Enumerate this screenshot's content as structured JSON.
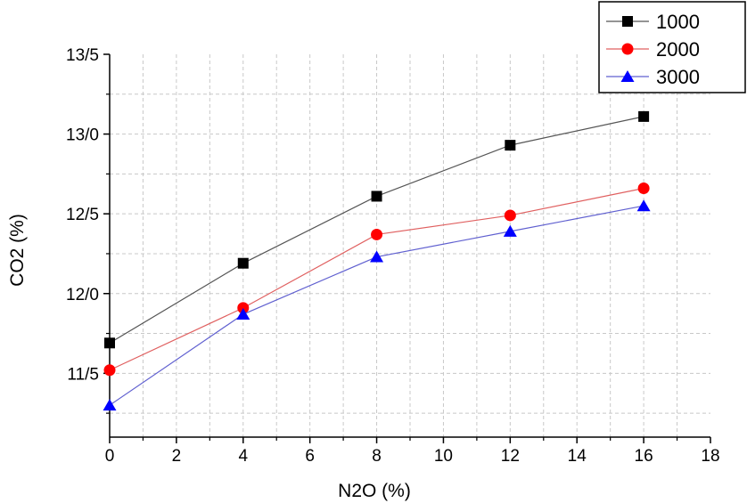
{
  "chart_data": {
    "type": "line",
    "title": "",
    "xlabel": "N2O (%)",
    "ylabel": "CO2 (%)",
    "xlim": [
      0,
      18
    ],
    "ylim": [
      11.1,
      13.5
    ],
    "xticks": [
      0,
      2,
      4,
      6,
      8,
      10,
      12,
      14,
      16,
      18
    ],
    "xtick_labels": [
      "0",
      "2",
      "4",
      "6",
      "8",
      "10",
      "12",
      "14",
      "16",
      "18"
    ],
    "yticks": [
      11.5,
      12.0,
      12.5,
      13.0,
      13.5
    ],
    "ytick_labels": [
      "11/5",
      "12/0",
      "12/5",
      "13/0",
      "13/5"
    ],
    "grid": true,
    "legend_position": "top-right",
    "x": [
      0,
      4,
      8,
      12,
      16
    ],
    "series": [
      {
        "name": "1000",
        "marker": "square",
        "color": "#000000",
        "line_color": "#555555",
        "values": [
          11.69,
          12.19,
          12.61,
          12.93,
          13.11
        ]
      },
      {
        "name": "2000",
        "marker": "circle",
        "color": "#ff0000",
        "line_color": "#e06060",
        "values": [
          11.52,
          11.91,
          12.37,
          12.49,
          12.66
        ]
      },
      {
        "name": "3000",
        "marker": "triangle",
        "color": "#0000ff",
        "line_color": "#6060d0",
        "values": [
          11.3,
          11.87,
          12.23,
          12.39,
          12.55
        ]
      }
    ]
  }
}
